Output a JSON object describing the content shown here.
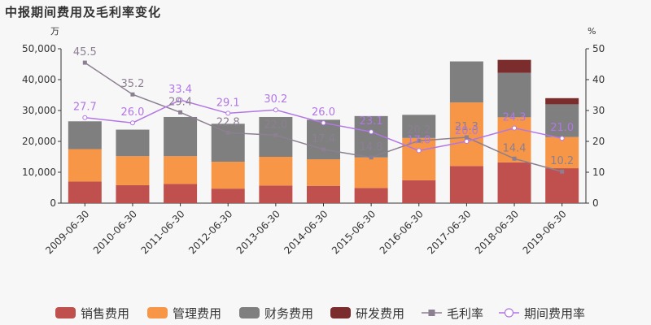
{
  "title": "中报期间费用及毛利率变化",
  "chart_data": {
    "type": "bar",
    "stacked": true,
    "categories": [
      "2009-06-30",
      "2010-06-30",
      "2011-06-30",
      "2012-06-30",
      "2013-06-30",
      "2014-06-30",
      "2015-06-30",
      "2016-06-30",
      "2017-06-30",
      "2018-06-30",
      "2019-06-30"
    ],
    "left_unit": "万",
    "right_unit": "%",
    "ylim_left": [
      0,
      50000
    ],
    "ylim_right": [
      0,
      50
    ],
    "left_ticks": [
      "0",
      "10,000",
      "20,000",
      "30,000",
      "40,000",
      "50,000"
    ],
    "right_ticks": [
      "0",
      "10",
      "20",
      "30",
      "40",
      "50"
    ],
    "grid": false,
    "legend_position": "bottom",
    "series": [
      {
        "name": "销售费用",
        "type": "bar",
        "axis": "left",
        "color": "#c0504d",
        "values": [
          7000,
          5800,
          6200,
          4700,
          5700,
          5600,
          4900,
          7400,
          12000,
          13200,
          11300
        ]
      },
      {
        "name": "管理费用",
        "type": "bar",
        "axis": "left",
        "color": "#f79646",
        "values": [
          10500,
          9400,
          9000,
          8700,
          9300,
          8600,
          9900,
          13700,
          20600,
          14600,
          10100
        ]
      },
      {
        "name": "财务费用",
        "type": "bar",
        "axis": "left",
        "color": "#7f7f7f",
        "values": [
          9000,
          8600,
          12700,
          12300,
          12900,
          12800,
          13400,
          7500,
          13300,
          14400,
          10600
        ]
      },
      {
        "name": "研发费用",
        "type": "bar",
        "axis": "left",
        "color": "#7b2c2c",
        "values": [
          0,
          0,
          0,
          0,
          0,
          0,
          0,
          0,
          0,
          4200,
          2000
        ]
      },
      {
        "name": "毛利率",
        "type": "line",
        "axis": "right",
        "color": "#8c7f91",
        "marker": "square",
        "values": [
          45.5,
          35.2,
          29.4,
          22.8,
          22.0,
          17.4,
          14.8,
          20.2,
          21.3,
          14.4,
          10.2
        ]
      },
      {
        "name": "期间费用率",
        "type": "line",
        "axis": "right",
        "color": "#b276e6",
        "marker": "circle",
        "values": [
          27.7,
          26.0,
          33.4,
          29.1,
          30.2,
          26.0,
          23.1,
          17.0,
          20.0,
          24.3,
          21.0
        ]
      }
    ]
  }
}
